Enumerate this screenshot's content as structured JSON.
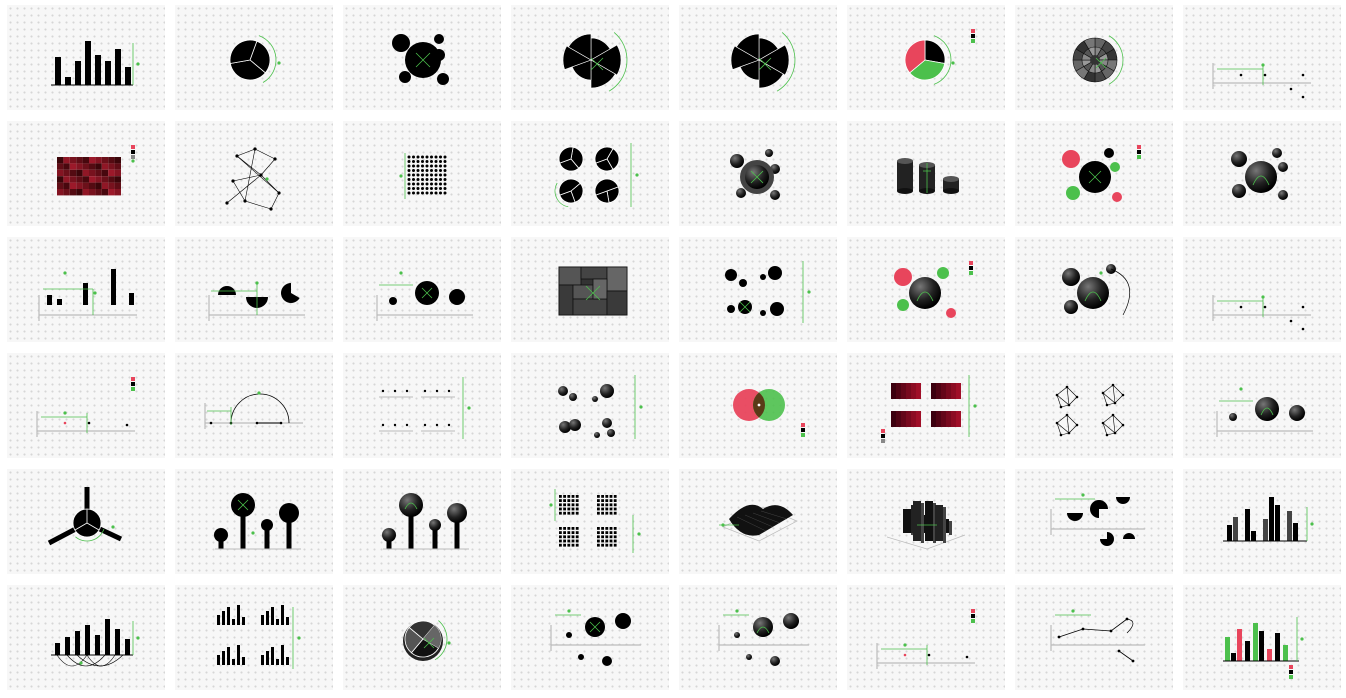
{
  "colors": {
    "black": "#000000",
    "accent_green": "#4cc04c",
    "accent_red": "#e8455c",
    "axis_gray": "#bbbbbb",
    "dark_red": "#5a0a18",
    "gray_fill": "#555555"
  },
  "tiles": [
    {
      "row": 0,
      "col": 0,
      "thumb": "bar-chart"
    },
    {
      "row": 0,
      "col": 1,
      "thumb": "pie-chart"
    },
    {
      "row": 0,
      "col": 2,
      "thumb": "bubble-cluster"
    },
    {
      "row": 0,
      "col": 3,
      "thumb": "polar-area-chart"
    },
    {
      "row": 0,
      "col": 4,
      "thumb": "polar-area-chart"
    },
    {
      "row": 0,
      "col": 5,
      "thumb": "colored-pie-chart"
    },
    {
      "row": 0,
      "col": 6,
      "thumb": "sunburst-chart"
    },
    {
      "row": 0,
      "col": 7,
      "thumb": "scatter-axis"
    },
    {
      "row": 1,
      "col": 0,
      "thumb": "heatmap"
    },
    {
      "row": 1,
      "col": 1,
      "thumb": "network-graph"
    },
    {
      "row": 1,
      "col": 2,
      "thumb": "dot-matrix"
    },
    {
      "row": 1,
      "col": 3,
      "thumb": "pie-multiples"
    },
    {
      "row": 1,
      "col": 4,
      "thumb": "shaded-bubbles"
    },
    {
      "row": 1,
      "col": 5,
      "thumb": "3d-cylinders"
    },
    {
      "row": 1,
      "col": 6,
      "thumb": "colored-bubbles"
    },
    {
      "row": 1,
      "col": 7,
      "thumb": "sphere-cluster"
    },
    {
      "row": 2,
      "col": 0,
      "thumb": "bar-chart-axis"
    },
    {
      "row": 2,
      "col": 1,
      "thumb": "pie-pieces-axis"
    },
    {
      "row": 2,
      "col": 2,
      "thumb": "bubble-axis"
    },
    {
      "row": 2,
      "col": 3,
      "thumb": "treemap"
    },
    {
      "row": 2,
      "col": 4,
      "thumb": "bubble-multiples"
    },
    {
      "row": 2,
      "col": 5,
      "thumb": "colored-spheres"
    },
    {
      "row": 2,
      "col": 6,
      "thumb": "sphere-arc"
    },
    {
      "row": 2,
      "col": 7,
      "thumb": "scatter-axis"
    },
    {
      "row": 3,
      "col": 0,
      "thumb": "scatter-legend"
    },
    {
      "row": 3,
      "col": 1,
      "thumb": "arc-diagram"
    },
    {
      "row": 3,
      "col": 2,
      "thumb": "small-multiples"
    },
    {
      "row": 3,
      "col": 3,
      "thumb": "shaded-bubble-multiples"
    },
    {
      "row": 3,
      "col": 4,
      "thumb": "venn-diagram"
    },
    {
      "row": 3,
      "col": 5,
      "thumb": "heatmap-multiples"
    },
    {
      "row": 3,
      "col": 6,
      "thumb": "network-multiples"
    },
    {
      "row": 3,
      "col": 7,
      "thumb": "sphere-axis"
    },
    {
      "row": 4,
      "col": 0,
      "thumb": "radial-bars"
    },
    {
      "row": 4,
      "col": 1,
      "thumb": "lollipop-chart"
    },
    {
      "row": 4,
      "col": 2,
      "thumb": "sphere-lollipop"
    },
    {
      "row": 4,
      "col": 3,
      "thumb": "dot-matrix-multiples"
    },
    {
      "row": 4,
      "col": 4,
      "thumb": "3d-surface"
    },
    {
      "row": 4,
      "col": 5,
      "thumb": "3d-bars"
    },
    {
      "row": 4,
      "col": 6,
      "thumb": "pie-scatter"
    },
    {
      "row": 4,
      "col": 7,
      "thumb": "grouped-bars"
    },
    {
      "row": 5,
      "col": 0,
      "thumb": "bar-arc-chart"
    },
    {
      "row": 5,
      "col": 1,
      "thumb": "bar-multiples"
    },
    {
      "row": 5,
      "col": 2,
      "thumb": "pie-chart-3d"
    },
    {
      "row": 5,
      "col": 3,
      "thumb": "bubble-scatter-axis"
    },
    {
      "row": 5,
      "col": 4,
      "thumb": "sphere-scatter-axis"
    },
    {
      "row": 5,
      "col": 5,
      "thumb": "scatter-legend"
    },
    {
      "row": 5,
      "col": 6,
      "thumb": "line-scatter"
    },
    {
      "row": 5,
      "col": 7,
      "thumb": "colored-bar-chart"
    }
  ]
}
